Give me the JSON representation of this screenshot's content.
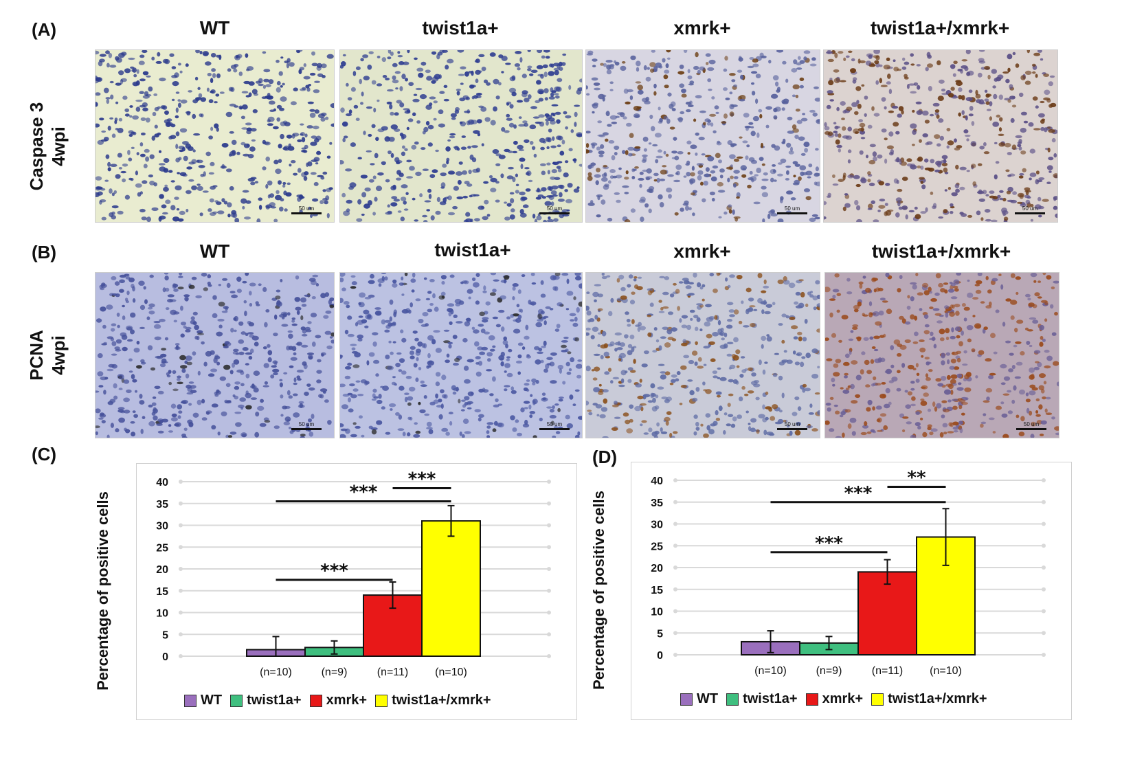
{
  "panels": {
    "a_label": "(A)",
    "b_label": "(B)",
    "c_label": "(C)",
    "d_label": "(D)"
  },
  "rows": [
    {
      "title_line1": "Caspase 3",
      "title_line2": "4wpi"
    },
    {
      "title_line1": "PCNA",
      "title_line2": "4wpi"
    }
  ],
  "columns": [
    "WT",
    "twist1a+",
    "xmrk+",
    "twist1a+/xmrk+"
  ],
  "scale_bar_label": "50 um",
  "micro_styles": [
    {
      "bg": "#e9ecd0",
      "nucleus": "#2b3a8c",
      "stain": "#3b2a10",
      "stain_density": 0.0
    },
    {
      "bg": "#e2e6cc",
      "nucleus": "#2d3c90",
      "stain": "#3b2a10",
      "stain_density": 0.0
    },
    {
      "bg": "#d8d6e2",
      "nucleus": "#56609c",
      "stain": "#6b3d12",
      "stain_density": 0.18
    },
    {
      "bg": "#dcd3d0",
      "nucleus": "#5a4f86",
      "stain": "#6a3a16",
      "stain_density": 0.35
    },
    {
      "bg": "#b8bde0",
      "nucleus": "#45509a",
      "stain": "#2a2a2a",
      "stain_density": 0.06
    },
    {
      "bg": "#bcc2e2",
      "nucleus": "#4855a0",
      "stain": "#2a2a2a",
      "stain_density": 0.06
    },
    {
      "bg": "#c9cbd8",
      "nucleus": "#5d6aa4",
      "stain": "#8a4f1a",
      "stain_density": 0.3
    },
    {
      "bg": "#b9a8b6",
      "nucleus": "#6a5f96",
      "stain": "#9a4a1c",
      "stain_density": 0.55
    }
  ],
  "colors": {
    "WT": "#9a6fbd",
    "twist1a+": "#3fbf7f",
    "xmrk+": "#e81818",
    "twist1a+/xmrk+": "#ffff00"
  },
  "chart_data": [
    {
      "type": "bar",
      "title": "",
      "ylabel": "Percentage of positive cells",
      "xlabel": "",
      "categories": [
        "WT",
        "twist1a+",
        "xmrk+",
        "twist1a+/xmrk+"
      ],
      "values": [
        1.5,
        2,
        14,
        31
      ],
      "errors": [
        3,
        1.5,
        3,
        3.5
      ],
      "n_labels": [
        "(n=10)",
        "(n=9)",
        "(n=11)",
        "(n=10)"
      ],
      "ylim": [
        0,
        40
      ],
      "yticks": [
        "0",
        "5",
        "10",
        "15",
        "20",
        "25",
        "30",
        "35",
        "40"
      ],
      "significance": [
        {
          "from": 2,
          "to": 3,
          "y": 38.5,
          "label": "***"
        },
        {
          "from": 0,
          "to": 3,
          "y": 35.5,
          "label": "***"
        },
        {
          "from": 0,
          "to": 2,
          "y": 17.5,
          "label": "***"
        }
      ],
      "legend": [
        "WT",
        "twist1a+",
        "xmrk+",
        "twist1a+/xmrk+"
      ]
    },
    {
      "type": "bar",
      "title": "",
      "ylabel": "Percentage of positive cells",
      "xlabel": "",
      "categories": [
        "WT",
        "twist1a+",
        "xmrk+",
        "twist1a+/xmrk+"
      ],
      "values": [
        3,
        2.7,
        19,
        27
      ],
      "errors": [
        2.5,
        1.5,
        2.8,
        6.5
      ],
      "n_labels": [
        "(n=10)",
        "(n=9)",
        "(n=11)",
        "(n=10)"
      ],
      "ylim": [
        0,
        40
      ],
      "yticks": [
        "0",
        "5",
        "10",
        "15",
        "20",
        "25",
        "30",
        "35",
        "40"
      ],
      "significance": [
        {
          "from": 2,
          "to": 3,
          "y": 38.5,
          "label": "**"
        },
        {
          "from": 0,
          "to": 3,
          "y": 35,
          "label": "***"
        },
        {
          "from": 0,
          "to": 2,
          "y": 23.5,
          "label": "***"
        }
      ],
      "legend": [
        "WT",
        "twist1a+",
        "xmrk+",
        "twist1a+/xmrk+"
      ]
    }
  ]
}
